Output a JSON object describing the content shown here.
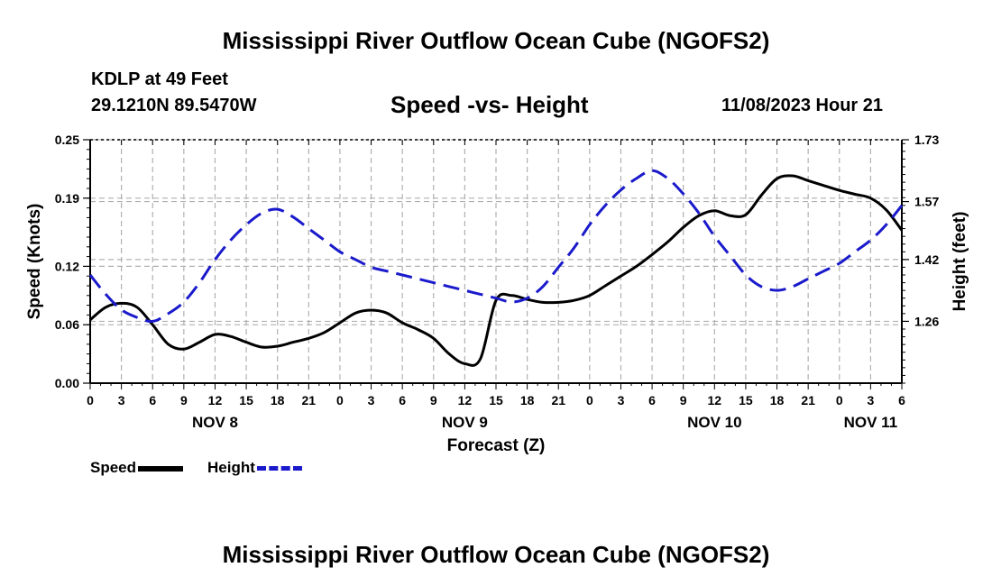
{
  "header": {
    "title": "Mississippi River Outflow Ocean Cube (NGOFS2)",
    "station_name": "KDLP at 49 Feet",
    "station_coords": "29.1210N  89.5470W",
    "subtitle": "Speed -vs- Height",
    "issue_time": "11/08/2023 Hour 21",
    "footer_title": "Mississippi River Outflow Ocean Cube (NGOFS2)"
  },
  "legend": {
    "speed_label": "Speed",
    "height_label": "Height"
  },
  "colors": {
    "speed": "#000000",
    "height": "#1a1acc",
    "grid": "#b0b0b0"
  },
  "chart_data": {
    "type": "line",
    "title": "Speed -vs- Height",
    "xlabel": "Forecast (Z)",
    "ylabel": "Speed (Knots)",
    "y2label": "Height (feet)",
    "xlim": [
      0,
      78
    ],
    "ylim": [
      0,
      0.25
    ],
    "y2lim": [
      1.1,
      1.73
    ],
    "x_ticks": [
      0,
      3,
      6,
      9,
      12,
      15,
      18,
      21,
      24,
      27,
      30,
      33,
      36,
      39,
      42,
      45,
      48,
      51,
      54,
      57,
      60,
      63,
      66,
      69,
      72,
      75,
      78
    ],
    "x_tick_labels": [
      "0",
      "3",
      "6",
      "9",
      "12",
      "15",
      "18",
      "21",
      "0",
      "3",
      "6",
      "9",
      "12",
      "15",
      "18",
      "21",
      "0",
      "3",
      "6",
      "9",
      "12",
      "15",
      "18",
      "21",
      "0",
      "3",
      "6"
    ],
    "date_labels": [
      {
        "x": 12,
        "label": "NOV 8"
      },
      {
        "x": 36,
        "label": "NOV 9"
      },
      {
        "x": 60,
        "label": "NOV 10"
      },
      {
        "x": 75,
        "label": "NOV 11"
      }
    ],
    "y_ticks": [
      0.0,
      0.06,
      0.12,
      0.19,
      0.25
    ],
    "y_tick_labels": [
      "0.00",
      "0.06",
      "0.12",
      "0.19",
      "0.25"
    ],
    "y2_ticks": [
      1.26,
      1.42,
      1.57,
      1.73
    ],
    "y2_tick_labels": [
      "1.26",
      "1.42",
      "1.57",
      "1.73"
    ],
    "grid": true,
    "series": [
      {
        "name": "Speed",
        "axis": "left",
        "style": "solid",
        "x": [
          0,
          1.5,
          3,
          4.5,
          6,
          7.5,
          9,
          10.5,
          12,
          13.5,
          15,
          16.5,
          18,
          19.5,
          21,
          22.5,
          24,
          25.5,
          27,
          28.5,
          30,
          31.5,
          33,
          34.5,
          36,
          37.5,
          39,
          40.5,
          42,
          43.5,
          45,
          46.5,
          48,
          49.5,
          51,
          52.5,
          54,
          55.5,
          57,
          58.5,
          60,
          61.5,
          63,
          64.5,
          66,
          67.5,
          69,
          70.5,
          72,
          73.5,
          75,
          76.5,
          78
        ],
        "values": [
          0.065,
          0.078,
          0.082,
          0.078,
          0.06,
          0.04,
          0.035,
          0.042,
          0.05,
          0.048,
          0.042,
          0.037,
          0.038,
          0.042,
          0.046,
          0.052,
          0.062,
          0.072,
          0.075,
          0.072,
          0.062,
          0.055,
          0.046,
          0.03,
          0.02,
          0.025,
          0.085,
          0.09,
          0.086,
          0.083,
          0.083,
          0.085,
          0.09,
          0.1,
          0.11,
          0.12,
          0.132,
          0.145,
          0.16,
          0.172,
          0.177,
          0.172,
          0.173,
          0.193,
          0.21,
          0.213,
          0.208,
          0.203,
          0.198,
          0.194,
          0.19,
          0.178,
          0.157
        ]
      },
      {
        "name": "Height",
        "axis": "right",
        "style": "dashed",
        "x": [
          0,
          1.5,
          3,
          4.5,
          6,
          7.5,
          9,
          10.5,
          12,
          13.5,
          15,
          16.5,
          18,
          19.5,
          21,
          22.5,
          24,
          25.5,
          27,
          28.5,
          30,
          31.5,
          33,
          34.5,
          36,
          37.5,
          39,
          40.5,
          42,
          43.5,
          45,
          46.5,
          48,
          49.5,
          51,
          52.5,
          54,
          55.5,
          57,
          58.5,
          60,
          61.5,
          63,
          64.5,
          66,
          67.5,
          69,
          70.5,
          72,
          73.5,
          75,
          76.5,
          78
        ],
        "values": [
          1.38,
          1.33,
          1.29,
          1.27,
          1.26,
          1.28,
          1.31,
          1.36,
          1.42,
          1.47,
          1.51,
          1.54,
          1.55,
          1.53,
          1.5,
          1.47,
          1.44,
          1.42,
          1.4,
          1.39,
          1.38,
          1.37,
          1.36,
          1.35,
          1.34,
          1.33,
          1.32,
          1.31,
          1.32,
          1.35,
          1.4,
          1.45,
          1.51,
          1.56,
          1.6,
          1.63,
          1.65,
          1.63,
          1.59,
          1.54,
          1.48,
          1.43,
          1.38,
          1.35,
          1.34,
          1.35,
          1.37,
          1.39,
          1.41,
          1.44,
          1.47,
          1.51,
          1.56
        ]
      }
    ]
  }
}
